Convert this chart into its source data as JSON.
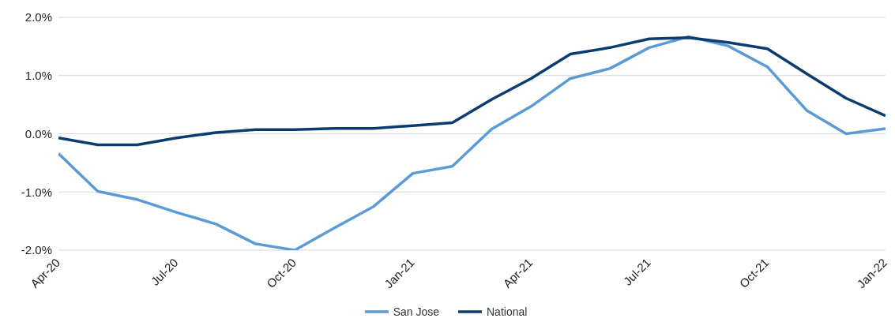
{
  "chart_data": {
    "type": "line",
    "x": [
      "2020-04",
      "2020-05",
      "2020-06",
      "2020-07",
      "2020-08",
      "2020-09",
      "2020-10",
      "2020-11",
      "2020-12",
      "2021-01",
      "2021-02",
      "2021-03",
      "2021-04",
      "2021-05",
      "2021-06",
      "2021-07",
      "2021-08",
      "2021-09",
      "2021-10",
      "2021-11",
      "2021-12",
      "2022-01"
    ],
    "series": [
      {
        "name": "San Jose",
        "color": "#5b9bd5",
        "values": [
          -0.34,
          -0.99,
          -1.13,
          -1.35,
          -1.55,
          -1.89,
          -2.0,
          -1.62,
          -1.25,
          -0.68,
          -0.56,
          0.08,
          0.47,
          0.95,
          1.12,
          1.48,
          1.67,
          1.51,
          1.15,
          0.4,
          0.0,
          0.09
        ]
      },
      {
        "name": "National",
        "color": "#0b3c6f",
        "values": [
          -0.07,
          -0.19,
          -0.19,
          -0.07,
          0.02,
          0.07,
          0.07,
          0.09,
          0.09,
          0.14,
          0.19,
          0.59,
          0.95,
          1.37,
          1.48,
          1.63,
          1.65,
          1.57,
          1.46,
          1.03,
          0.61,
          0.31
        ]
      }
    ],
    "xlim": [
      "2020-04",
      "2022-01"
    ],
    "xticks": [
      {
        "value": "2020-04",
        "label": "Apr-20"
      },
      {
        "value": "2020-07",
        "label": "Jul-20"
      },
      {
        "value": "2020-10",
        "label": "Oct-20"
      },
      {
        "value": "2021-01",
        "label": "Jan-21"
      },
      {
        "value": "2021-04",
        "label": "Apr-21"
      },
      {
        "value": "2021-07",
        "label": "Jul-21"
      },
      {
        "value": "2021-10",
        "label": "Oct-21"
      },
      {
        "value": "2022-01",
        "label": "Jan-22"
      }
    ],
    "ylim": [
      -2,
      2
    ],
    "yticks": [
      {
        "value": -2,
        "label": "-2.0%"
      },
      {
        "value": -1,
        "label": "-1.0%"
      },
      {
        "value": 0,
        "label": "0.0%"
      },
      {
        "value": 1,
        "label": "1.0%"
      },
      {
        "value": 2,
        "label": "2.0%"
      }
    ],
    "grid": "y",
    "legend": "bottom",
    "marker": "none",
    "line_style": "solid"
  }
}
